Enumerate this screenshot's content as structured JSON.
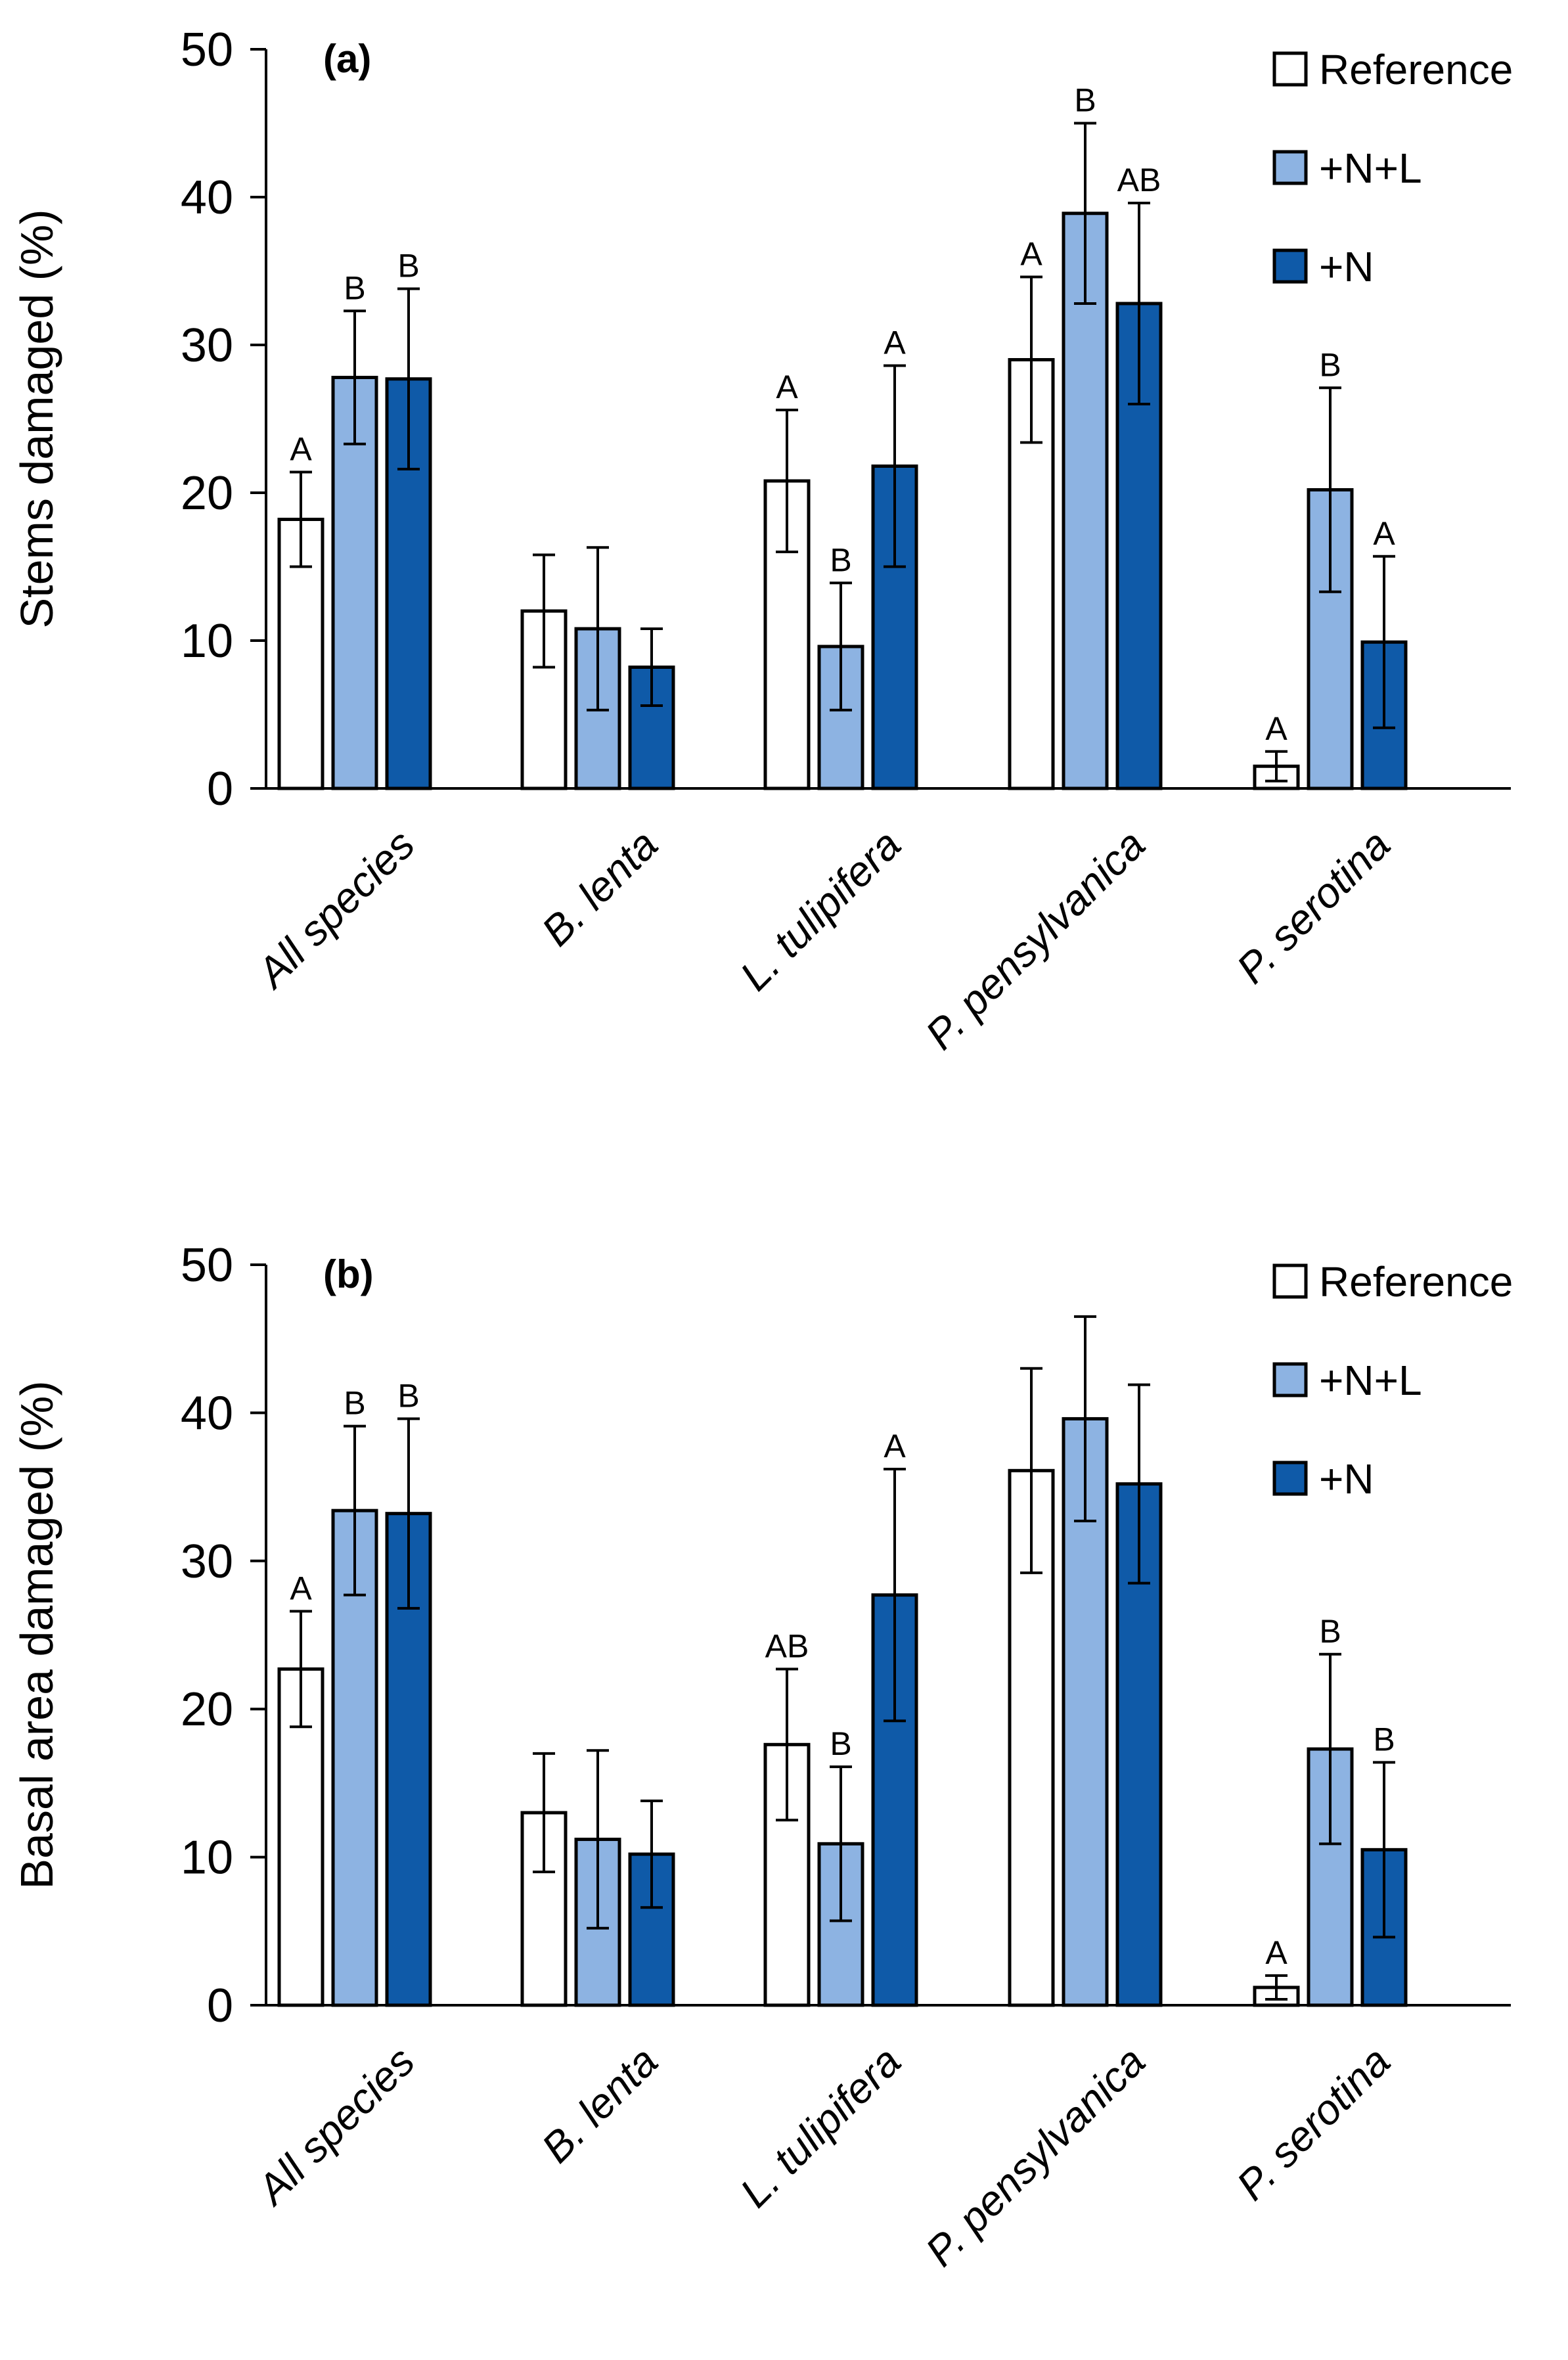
{
  "figure": {
    "series_colors": {
      "Reference": "#ffffff",
      "+N+L": "#8db3e2",
      "+N": "#0f5aa8"
    },
    "edge_color": "#000000"
  },
  "chart_data": [
    {
      "type": "bar",
      "panel": "(a)",
      "ylabel": "Stems damaged (%)",
      "xlabel": "",
      "ylim": [
        0,
        50
      ],
      "yticks": [
        0,
        10,
        20,
        30,
        40,
        50
      ],
      "yticklabels": [
        "0",
        "10",
        "20",
        "30",
        "40",
        "50"
      ],
      "categories": [
        "All species",
        "B. lenta",
        "L. tulipifera",
        "P. pensylvanica",
        "P. serotina"
      ],
      "legend": {
        "position": "top-right",
        "entries": [
          "Reference",
          "+N+L",
          "+N"
        ]
      },
      "series": [
        {
          "name": "Reference",
          "values": [
            18.2,
            12.0,
            20.8,
            29.0,
            1.5
          ],
          "error": [
            3.2,
            3.8,
            4.8,
            5.6,
            1.0
          ],
          "labels": [
            "A",
            "",
            "A",
            "A",
            "A"
          ]
        },
        {
          "name": "+N+L",
          "values": [
            27.8,
            10.8,
            9.6,
            38.9,
            20.2
          ],
          "error": [
            4.5,
            5.5,
            4.3,
            6.1,
            6.9
          ],
          "labels": [
            "B",
            "",
            "B",
            "B",
            "B"
          ]
        },
        {
          "name": "+N",
          "values": [
            27.7,
            8.2,
            21.8,
            32.8,
            9.9
          ],
          "error": [
            6.1,
            2.6,
            6.8,
            6.8,
            5.8
          ],
          "labels": [
            "B",
            "",
            "A",
            "AB",
            "A"
          ]
        }
      ]
    },
    {
      "type": "bar",
      "panel": "(b)",
      "ylabel": "Basal area damaged (%)",
      "xlabel": "",
      "ylim": [
        0,
        50
      ],
      "yticks": [
        0,
        10,
        20,
        30,
        40,
        50
      ],
      "yticklabels": [
        "0",
        "10",
        "20",
        "30",
        "40",
        "50"
      ],
      "categories": [
        "All species",
        "B. lenta",
        "L. tulipifera",
        "P. pensylvanica",
        "P. serotina"
      ],
      "legend": {
        "position": "top-right",
        "entries": [
          "Reference",
          "+N+L",
          "+N"
        ]
      },
      "series": [
        {
          "name": "Reference",
          "values": [
            22.7,
            13.0,
            17.6,
            36.1,
            1.2
          ],
          "error": [
            3.9,
            4.0,
            5.1,
            6.9,
            0.8
          ],
          "labels": [
            "A",
            "",
            "AB",
            "",
            "A"
          ]
        },
        {
          "name": "+N+L",
          "values": [
            33.4,
            11.2,
            10.9,
            39.6,
            17.3
          ],
          "error": [
            5.7,
            6.0,
            5.2,
            6.9,
            6.4
          ],
          "labels": [
            "B",
            "",
            "B",
            "",
            "B"
          ]
        },
        {
          "name": "+N",
          "values": [
            33.2,
            10.2,
            27.7,
            35.2,
            10.5
          ],
          "error": [
            6.4,
            3.6,
            8.5,
            6.7,
            5.9
          ],
          "labels": [
            "B",
            "",
            "A",
            "",
            "B"
          ]
        }
      ]
    }
  ]
}
